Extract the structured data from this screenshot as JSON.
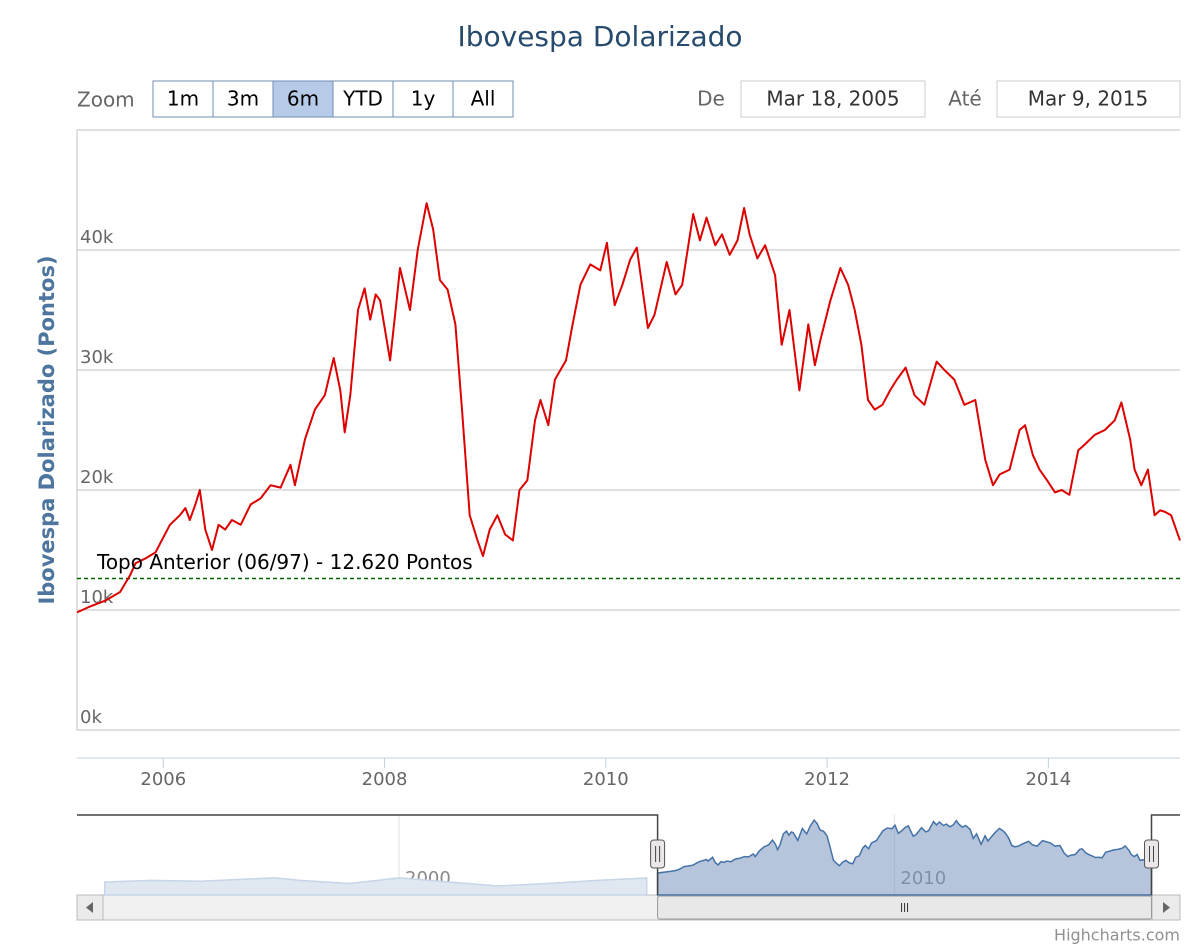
{
  "chart_data": {
    "type": "line",
    "title": "Ibovespa Dolarizado",
    "y_label": "Ibovespa Dolarizado (Pontos)",
    "color": "#dd0000",
    "x": [
      2005.22,
      2005.34,
      2005.48,
      2005.61,
      2005.7,
      2005.75,
      2005.84,
      2005.93,
      2006.06,
      2006.15,
      2006.2,
      2006.24,
      2006.29,
      2006.33,
      2006.38,
      2006.44,
      2006.5,
      2006.56,
      2006.62,
      2006.7,
      2006.79,
      2006.88,
      2006.97,
      2007.06,
      2007.15,
      2007.19,
      2007.28,
      2007.37,
      2007.46,
      2007.54,
      2007.6,
      2007.64,
      2007.69,
      2007.76,
      2007.82,
      2007.87,
      2007.92,
      2007.96,
      2008.05,
      2008.1,
      2008.14,
      2008.23,
      2008.3,
      2008.38,
      2008.44,
      2008.5,
      2008.57,
      2008.64,
      2008.7,
      2008.77,
      2008.84,
      2008.89,
      2008.95,
      2009.02,
      2009.09,
      2009.16,
      2009.22,
      2009.29,
      2009.36,
      2009.41,
      2009.48,
      2009.54,
      2009.64,
      2009.7,
      2009.77,
      2009.86,
      2009.95,
      2010.01,
      2010.08,
      2010.15,
      2010.22,
      2010.28,
      2010.38,
      2010.44,
      2010.55,
      2010.63,
      2010.69,
      2010.79,
      2010.85,
      2010.91,
      2010.99,
      2011.05,
      2011.12,
      2011.19,
      2011.25,
      2011.3,
      2011.37,
      2011.44,
      2011.53,
      2011.59,
      2011.66,
      2011.75,
      2011.83,
      2011.89,
      2011.94,
      2012.03,
      2012.12,
      2012.19,
      2012.25,
      2012.31,
      2012.37,
      2012.43,
      2012.5,
      2012.57,
      2012.63,
      2012.71,
      2012.79,
      2012.88,
      2012.99,
      2013.06,
      2013.15,
      2013.24,
      2013.34,
      2013.43,
      2013.5,
      2013.56,
      2013.65,
      2013.74,
      2013.79,
      2013.86,
      2013.92,
      2013.99,
      2014.06,
      2014.12,
      2014.19,
      2014.27,
      2014.33,
      2014.42,
      2014.51,
      2014.6,
      2014.66,
      2014.74,
      2014.78,
      2014.84,
      2014.9,
      2014.96,
      2015.01,
      2015.05,
      2015.11,
      2015.19
    ],
    "values": [
      9800,
      10300,
      10800,
      11500,
      12900,
      13900,
      14300,
      14800,
      17100,
      17900,
      18500,
      17500,
      18800,
      20000,
      16700,
      15000,
      17100,
      16700,
      17500,
      17100,
      18800,
      19300,
      20400,
      20200,
      22100,
      20400,
      24200,
      26700,
      27900,
      31000,
      28300,
      24800,
      27900,
      35000,
      36800,
      34200,
      36300,
      35800,
      30800,
      35000,
      38500,
      35000,
      40000,
      43900,
      41700,
      37500,
      36700,
      33800,
      26700,
      17900,
      15800,
      14500,
      16700,
      17900,
      16300,
      15800,
      20000,
      20800,
      25800,
      27500,
      25400,
      29200,
      30800,
      33800,
      37100,
      38800,
      38300,
      40600,
      35400,
      37100,
      39200,
      40200,
      33500,
      34600,
      39000,
      36300,
      37100,
      43000,
      40800,
      42700,
      40400,
      41300,
      39600,
      40800,
      43500,
      41300,
      39300,
      40400,
      37900,
      32100,
      35000,
      28300,
      33800,
      30400,
      32500,
      35800,
      38500,
      37100,
      35000,
      32100,
      27500,
      26700,
      27100,
      28300,
      29200,
      30200,
      27900,
      27100,
      30700,
      30000,
      29200,
      27100,
      27500,
      22500,
      20400,
      21300,
      21700,
      25000,
      25400,
      22900,
      21700,
      20800,
      19800,
      20000,
      19600,
      23300,
      23800,
      24600,
      25000,
      25800,
      27300,
      24200,
      21700,
      20400,
      21700,
      17900,
      18300,
      18200,
      17900,
      15800
    ],
    "xlim": [
      2005.22,
      2015.19
    ],
    "xticks": [
      2006,
      2008,
      2010,
      2012,
      2014
    ],
    "ylim": [
      0,
      50000
    ],
    "yticks": [
      {
        "value": 0,
        "label": "0k"
      },
      {
        "value": 10000,
        "label": "10k"
      },
      {
        "value": 20000,
        "label": "20k"
      },
      {
        "value": 30000,
        "label": "30k"
      },
      {
        "value": 40000,
        "label": "40k"
      }
    ],
    "grid": true,
    "plot_lines": [
      {
        "value": 12620,
        "label": "Topo Anterior (06/97) - 12.620 Pontos",
        "color": "#006600"
      }
    ],
    "range_selector": {
      "label": "Zoom",
      "buttons": [
        "1m",
        "3m",
        "6m",
        "YTD",
        "1y",
        "All"
      ],
      "selected": 2,
      "from_label": "De",
      "from": "Mar 18, 2005",
      "to_label": "Até",
      "to": "Mar 9, 2015"
    },
    "navigator": {
      "color": "#4572a7",
      "x": [
        1994.06,
        1995,
        1996,
        1997,
        1997.5,
        1998,
        1999,
        2000,
        2001,
        2002,
        2003,
        2004,
        2005
      ],
      "values": [
        4000,
        5000,
        4500,
        6000,
        6600,
        5000,
        3000,
        6600,
        4000,
        1400,
        3000,
        5000,
        6600
      ],
      "xlim": [
        1993.5,
        2015.2
      ],
      "ylim": [
        -4400,
        47200
      ],
      "xticks": [
        2000,
        2010
      ]
    },
    "credits": "Highcharts.com"
  }
}
